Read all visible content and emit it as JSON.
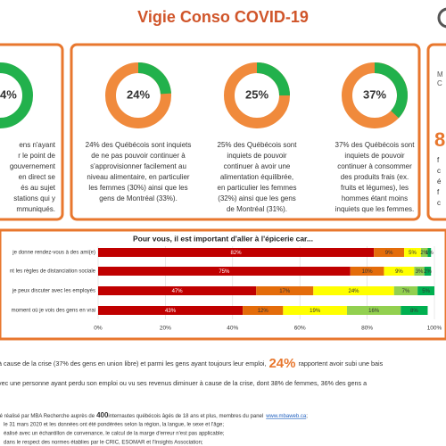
{
  "header": {
    "title": "Vigie Conso COVID-19"
  },
  "left_panel": {
    "donut_label": "4%",
    "lines": [
      "ens n'ayant",
      "r le point de",
      "gouvernement",
      "en direct se",
      "és au sujet",
      "stations qui y",
      "mmuniqués."
    ]
  },
  "donuts": [
    {
      "value": 24,
      "value_label": "24%",
      "lines": [
        "24% des Québécois sont inquiets",
        "de ne pas pouvoir continuer à",
        "s'approvisionner facilement au",
        "niveau alimentaire, en particulier",
        "les femmes (30%) ainsi que les",
        "gens de Montréal (33%)."
      ]
    },
    {
      "value": 25,
      "value_label": "25%",
      "lines": [
        "25% des Québécois sont",
        "inquiets de pouvoir",
        "continuer à avoir une",
        "alimentation équilibrée,",
        "en particulier les femmes",
        "(32%) ainsi que les gens",
        "de Montréal (31%)."
      ]
    },
    {
      "value": 37,
      "value_label": "37%",
      "lines": [
        "37% des Québécois sont",
        "inquiets de pouvoir",
        "continuer à consommer",
        "des produits frais (ex.",
        "fruits et légumes), les",
        "hommes étant moins",
        "inquiets que les femmes."
      ]
    }
  ],
  "right_panel": {
    "small": [
      "M",
      "C"
    ],
    "big": "8",
    "lines": [
      "f",
      "c",
      "é",
      "f",
      "c"
    ]
  },
  "chart_data": {
    "type": "bar",
    "orientation": "horizontal",
    "stacked": true,
    "title": "Pour vous, il est important d'aller à l'épicerie car...",
    "categories": [
      "je donne rendez-vous à des ami(e)",
      "nt les règles de distanciation sociale",
      "je peux discuter avec les employés",
      "moment où je vois des gens en vrai"
    ],
    "series": [
      {
        "color": "#c00000",
        "values": [
          82,
          75,
          47,
          43
        ],
        "value_labels": [
          "82%",
          "75%",
          "47%",
          "43%"
        ]
      },
      {
        "color": "#e46c0a",
        "values": [
          9,
          10,
          17,
          12
        ],
        "value_labels": [
          "9%",
          "10%",
          "17%",
          "12%"
        ]
      },
      {
        "color": "#ffff00",
        "values": [
          5,
          9,
          24,
          19
        ],
        "value_labels": [
          "5%",
          "9%",
          "24%",
          "19%"
        ]
      },
      {
        "color": "#92d050",
        "values": [
          2,
          3,
          7,
          16
        ],
        "value_labels": [
          "2%",
          "3%",
          "7%",
          "16%"
        ]
      },
      {
        "color": "#00b050",
        "values": [
          1,
          2,
          5,
          8
        ],
        "value_labels": [
          "1%",
          "2%",
          "5%",
          "8%"
        ]
      }
    ],
    "xlim": [
      0,
      100
    ],
    "xticks": [
      {
        "value": 0,
        "label": "0%"
      },
      {
        "value": 20,
        "label": "20%"
      },
      {
        "value": 40,
        "label": "40%"
      },
      {
        "value": 60,
        "label": "60%"
      },
      {
        "value": 80,
        "label": "80%"
      },
      {
        "value": 100,
        "label": "100%"
      }
    ],
    "grid": true
  },
  "summary": {
    "line1_a": "à cause de la crise (37% des gens en union libre) et parmi les gens ayant toujours leur emploi,",
    "highlight": "24%",
    "line1_b": "rapportent avoir subi une bais",
    "line2": "vec une personne ayant perdu son emploi ou vu ses revenus diminuer à cause de la crise, dont 38% de femmes, 36% des gens a"
  },
  "footer": {
    "line1_a": "té réalisé par MBA Recherche auprès de",
    "count": "400",
    "line1_b": "internautes québécois âgés de 18 ans et plus, membres du panel",
    "link": "www.mbaweb.ca",
    "line1_c": ";",
    "line2": "le 31 mars 2020 et les données ont été pondérées selon la région, la langue, le sexe et l'âge;",
    "line3": "éalisé avec un échantillon de convenance, le calcul de la marge d'erreur n'est pas applicable;",
    "line4": "dans le respect des normes établies par le CRIC, ESOMAR et l'Insights Association;"
  }
}
